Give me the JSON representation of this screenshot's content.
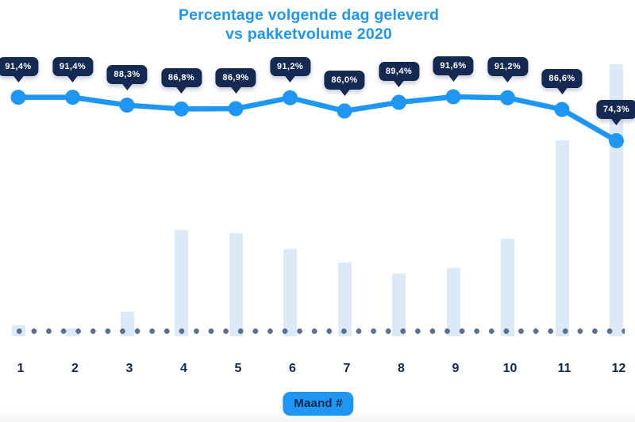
{
  "title": {
    "line1": "Percentage volgende dag geleverd",
    "line2": "vs pakketvolume 2020"
  },
  "x_axis": {
    "label": "Maand #"
  },
  "chart_data": {
    "type": "line+bar combo",
    "title": "Percentage volgende dag geleverd vs pakketvolume 2020",
    "xlabel": "Maand #",
    "categories": [
      "1",
      "2",
      "3",
      "4",
      "5",
      "6",
      "7",
      "8",
      "9",
      "10",
      "11",
      "12"
    ],
    "series": [
      {
        "name": "Percentage volgende dag geleverd",
        "type": "line",
        "unit": "%",
        "values": [
          91.4,
          91.4,
          88.3,
          86.8,
          86.9,
          91.2,
          86.0,
          89.4,
          91.6,
          91.2,
          86.6,
          74.3
        ],
        "labels": [
          "91,4%",
          "91,4%",
          "88,3%",
          "86,8%",
          "86,9%",
          "91,2%",
          "86,0%",
          "89,4%",
          "91,6%",
          "91,2%",
          "86,6%",
          "74,3%"
        ]
      },
      {
        "name": "Pakketvolume 2020",
        "type": "bar",
        "unit": "relative volume index (max month = 100, estimated from bar heights)",
        "values": [
          4,
          3,
          9,
          39,
          38,
          32,
          27,
          23,
          25,
          36,
          72,
          100
        ]
      }
    ],
    "legend": "none",
    "grid": "off",
    "baseline_marker": "horizontal dotted line at x-axis"
  },
  "colors": {
    "accent_blue": "#1D97F3",
    "bubble_navy": "#152A52",
    "bar_light_blue": "#DCE9F7",
    "dot_slate": "#5C7191",
    "axis_text_navy": "#12284E",
    "background": "#FFFFFF"
  }
}
